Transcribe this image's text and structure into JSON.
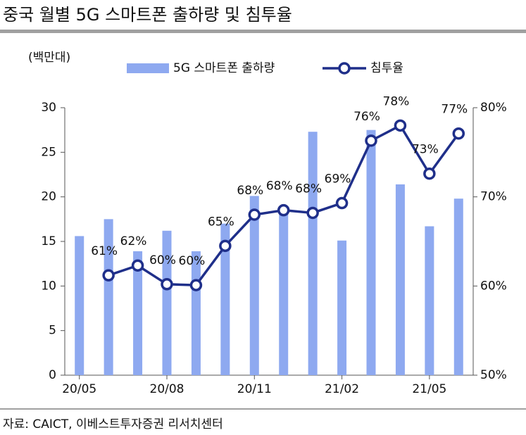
{
  "chart_data": {
    "type": "bar-line",
    "title": "중국 월별 5G 스마트폰 출하량 및 침투율",
    "y_axis_label": "(백만대)",
    "source": "자료: CAICT, 이베스트투자증권 리서치센터",
    "categories": [
      "20/05",
      null,
      null,
      "20/08",
      null,
      null,
      "20/11",
      null,
      null,
      "21/02",
      null,
      null,
      "21/05",
      null
    ],
    "series": [
      {
        "name": "5G 스마트폰 출하량",
        "type": "bar",
        "color": "#8ea9f0",
        "values": [
          15.6,
          17.5,
          13.9,
          16.2,
          13.9,
          17.0,
          20.1,
          18.5,
          27.3,
          15.1,
          27.5,
          21.4,
          16.7,
          19.8
        ]
      },
      {
        "name": "침투율",
        "type": "line",
        "axis": "y2",
        "color": "#1f2f8a",
        "values": [
          null,
          61.2,
          62.3,
          60.2,
          60.1,
          64.5,
          68.0,
          68.5,
          68.2,
          69.3,
          76.3,
          78.0,
          72.6,
          77.1
        ],
        "value_labels": [
          null,
          "61%",
          "62%",
          "60%",
          "60%",
          "65%",
          "68%",
          "68%",
          "68%",
          "69%",
          "76%",
          "78%",
          "73%",
          "77%"
        ]
      }
    ],
    "ylim": [
      0,
      30
    ],
    "yticks": [
      0,
      5,
      10,
      15,
      20,
      25,
      30
    ],
    "y2lim": [
      50,
      80
    ],
    "y2ticks": [
      {
        "value": 50,
        "label": "50%"
      },
      {
        "value": 60,
        "label": "60%"
      },
      {
        "value": 70,
        "label": "70%"
      },
      {
        "value": 80,
        "label": "80%"
      }
    ],
    "legend": "top"
  }
}
